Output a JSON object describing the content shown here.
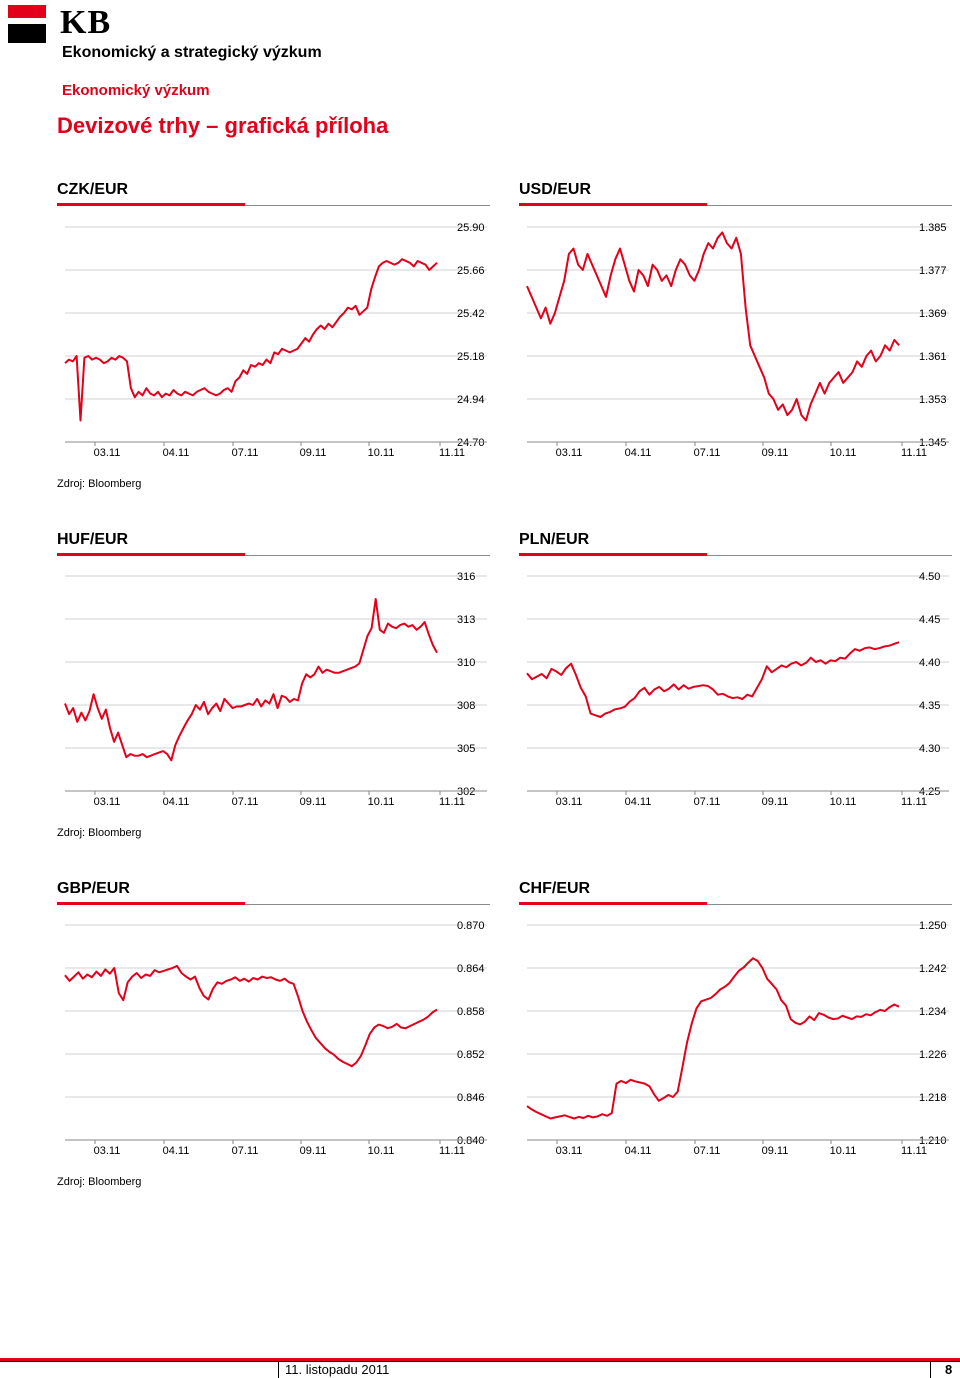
{
  "header": {
    "logo": "KB",
    "department": "Ekonomický a strategický výzkum",
    "subdepartment": "Ekonomický výzkum",
    "title": "Devizové trhy – grafická příloha"
  },
  "source_label": "Zdroj: Bloomberg",
  "footer": {
    "date": "11. listopadu 2011",
    "page": "8"
  },
  "colors": {
    "accent": "#e2001a",
    "line": "#e2001a",
    "grid": "#d0d0d0"
  },
  "chart_data": [
    {
      "id": "czk",
      "type": "line",
      "title": "CZK/EUR",
      "x_ticks": [
        "03.11",
        "04.11",
        "07.11",
        "09.11",
        "10.11",
        "11.11"
      ],
      "y_ticks": [
        "25.90",
        "25.66",
        "25.42",
        "25.18",
        "24.94",
        "24.70"
      ],
      "ylim": [
        24.7,
        25.9
      ],
      "series": [
        {
          "values": [
            25.14,
            25.16,
            25.15,
            25.18,
            24.82,
            25.17,
            25.18,
            25.16,
            25.17,
            25.16,
            25.14,
            25.15,
            25.17,
            25.16,
            25.18,
            25.17,
            25.15,
            25.0,
            24.95,
            24.98,
            24.96,
            25.0,
            24.97,
            24.96,
            24.98,
            24.95,
            24.97,
            24.96,
            24.99,
            24.97,
            24.96,
            24.98,
            24.97,
            24.96,
            24.98,
            24.99,
            25.0,
            24.98,
            24.97,
            24.96,
            24.97,
            24.99,
            25.0,
            24.98,
            25.04,
            25.06,
            25.1,
            25.08,
            25.13,
            25.12,
            25.14,
            25.13,
            25.16,
            25.14,
            25.2,
            25.19,
            25.22,
            25.21,
            25.2,
            25.21,
            25.22,
            25.25,
            25.28,
            25.26,
            25.3,
            25.33,
            25.35,
            25.33,
            25.36,
            25.34,
            25.37,
            25.4,
            25.42,
            25.45,
            25.44,
            25.46,
            25.41,
            25.43,
            25.45,
            25.55,
            25.62,
            25.68,
            25.7,
            25.71,
            25.7,
            25.69,
            25.7,
            25.72,
            25.71,
            25.7,
            25.68,
            25.71,
            25.7,
            25.69,
            25.66,
            25.68,
            25.7
          ]
        }
      ]
    },
    {
      "id": "usd",
      "type": "line",
      "title": "USD/EUR",
      "x_ticks": [
        "03.11",
        "04.11",
        "07.11",
        "09.11",
        "10.11",
        "11.11"
      ],
      "y_ticks": [
        "1.385",
        "1.377",
        "1.369",
        "1.361",
        "1.353",
        "1.345"
      ],
      "ylim": [
        1.345,
        1.385
      ],
      "series": [
        {
          "values": [
            1.374,
            1.372,
            1.37,
            1.368,
            1.37,
            1.367,
            1.369,
            1.372,
            1.375,
            1.38,
            1.381,
            1.378,
            1.377,
            1.38,
            1.378,
            1.376,
            1.374,
            1.372,
            1.376,
            1.379,
            1.381,
            1.378,
            1.375,
            1.373,
            1.377,
            1.376,
            1.374,
            1.378,
            1.377,
            1.375,
            1.376,
            1.374,
            1.377,
            1.379,
            1.378,
            1.376,
            1.375,
            1.377,
            1.38,
            1.382,
            1.381,
            1.383,
            1.384,
            1.382,
            1.381,
            1.383,
            1.38,
            1.37,
            1.363,
            1.361,
            1.359,
            1.357,
            1.354,
            1.353,
            1.351,
            1.352,
            1.35,
            1.351,
            1.353,
            1.35,
            1.349,
            1.352,
            1.354,
            1.356,
            1.354,
            1.356,
            1.357,
            1.358,
            1.356,
            1.357,
            1.358,
            1.36,
            1.359,
            1.361,
            1.362,
            1.36,
            1.361,
            1.363,
            1.362,
            1.364,
            1.363
          ]
        }
      ]
    },
    {
      "id": "huf",
      "type": "line",
      "title": "HUF/EUR",
      "x_ticks": [
        "03.11",
        "04.11",
        "07.11",
        "09.11",
        "10.11",
        "11.11"
      ],
      "y_ticks": [
        "316",
        "313",
        "310",
        "308",
        "305",
        "302"
      ],
      "ylim": [
        302,
        316
      ],
      "series": [
        {
          "values": [
            307.7,
            307.0,
            307.4,
            306.5,
            307.1,
            306.6,
            307.2,
            308.3,
            307.4,
            306.7,
            307.3,
            306.1,
            305.2,
            305.8,
            305.0,
            304.2,
            304.4,
            304.3,
            304.3,
            304.4,
            304.2,
            304.3,
            304.4,
            304.5,
            304.6,
            304.4,
            304.0,
            305.0,
            305.6,
            306.1,
            306.6,
            307.0,
            307.6,
            307.3,
            307.8,
            307.0,
            307.4,
            307.7,
            307.2,
            308.0,
            307.7,
            307.4,
            307.5,
            307.5,
            307.6,
            307.7,
            307.6,
            308.0,
            307.5,
            307.9,
            307.7,
            308.3,
            307.4,
            308.2,
            308.1,
            307.8,
            308.0,
            307.9,
            309.0,
            309.6,
            309.4,
            309.6,
            310.1,
            309.7,
            309.9,
            309.8,
            309.7,
            309.7,
            309.8,
            309.9,
            310.0,
            310.1,
            310.3,
            311.2,
            312.1,
            312.6,
            314.5,
            312.5,
            312.3,
            312.9,
            312.7,
            312.6,
            312.8,
            312.9,
            312.7,
            312.8,
            312.5,
            312.7,
            313.0,
            312.2,
            311.5,
            311.0
          ]
        }
      ]
    },
    {
      "id": "pln",
      "type": "line",
      "title": "PLN/EUR",
      "x_ticks": [
        "03.11",
        "04.11",
        "07.11",
        "09.11",
        "10.11",
        "11.11"
      ],
      "y_ticks": [
        "4.50",
        "4.45",
        "4.40",
        "4.35",
        "4.30",
        "4.25"
      ],
      "ylim": [
        4.25,
        4.5
      ],
      "series": [
        {
          "values": [
            4.387,
            4.38,
            4.383,
            4.386,
            4.381,
            4.392,
            4.389,
            4.385,
            4.393,
            4.398,
            4.385,
            4.37,
            4.36,
            4.34,
            4.338,
            4.336,
            4.34,
            4.342,
            4.345,
            4.346,
            4.348,
            4.354,
            4.358,
            4.366,
            4.37,
            4.362,
            4.368,
            4.371,
            4.366,
            4.369,
            4.374,
            4.368,
            4.373,
            4.369,
            4.371,
            4.372,
            4.373,
            4.372,
            4.368,
            4.362,
            4.363,
            4.36,
            4.358,
            4.359,
            4.357,
            4.362,
            4.36,
            4.37,
            4.38,
            4.395,
            4.388,
            4.392,
            4.396,
            4.394,
            4.398,
            4.4,
            4.396,
            4.399,
            4.405,
            4.4,
            4.402,
            4.398,
            4.402,
            4.401,
            4.405,
            4.404,
            4.41,
            4.415,
            4.413,
            4.416,
            4.417,
            4.415,
            4.416,
            4.418,
            4.419,
            4.421,
            4.423
          ]
        }
      ]
    },
    {
      "id": "gbp",
      "type": "line",
      "title": "GBP/EUR",
      "x_ticks": [
        "03.11",
        "04.11",
        "07.11",
        "09.11",
        "10.11",
        "11.11"
      ],
      "y_ticks": [
        "0.870",
        "0.864",
        "0.858",
        "0.852",
        "0.846",
        "0.840"
      ],
      "ylim": [
        0.84,
        0.87
      ],
      "series": [
        {
          "values": [
            0.863,
            0.8622,
            0.8628,
            0.8634,
            0.8625,
            0.8631,
            0.8627,
            0.8635,
            0.8629,
            0.8638,
            0.8632,
            0.864,
            0.8605,
            0.8595,
            0.862,
            0.8628,
            0.8633,
            0.8626,
            0.8631,
            0.8629,
            0.8637,
            0.8634,
            0.8636,
            0.8638,
            0.864,
            0.8643,
            0.8633,
            0.8628,
            0.8624,
            0.8628,
            0.8612,
            0.8601,
            0.8596,
            0.8611,
            0.862,
            0.8618,
            0.8622,
            0.8624,
            0.8627,
            0.8622,
            0.8625,
            0.8621,
            0.8626,
            0.8624,
            0.8628,
            0.8626,
            0.8627,
            0.8624,
            0.8622,
            0.8625,
            0.862,
            0.8618,
            0.86,
            0.858,
            0.8565,
            0.8553,
            0.8542,
            0.8535,
            0.8528,
            0.8523,
            0.8519,
            0.8513,
            0.8509,
            0.8506,
            0.8503,
            0.8508,
            0.8517,
            0.8532,
            0.8548,
            0.8557,
            0.8561,
            0.8559,
            0.8556,
            0.8558,
            0.8562,
            0.8557,
            0.8556,
            0.8559,
            0.8562,
            0.8565,
            0.8568,
            0.8572,
            0.8578,
            0.8582
          ]
        }
      ]
    },
    {
      "id": "chf",
      "type": "line",
      "title": "CHF/EUR",
      "x_ticks": [
        "03.11",
        "04.11",
        "07.11",
        "09.11",
        "10.11",
        "11.11"
      ],
      "y_ticks": [
        "1.250",
        "1.242",
        "1.234",
        "1.226",
        "1.218",
        "1.210"
      ],
      "ylim": [
        1.21,
        1.25
      ],
      "series": [
        {
          "values": [
            1.2163,
            1.2157,
            1.2152,
            1.2148,
            1.2144,
            1.214,
            1.2142,
            1.2144,
            1.2146,
            1.2143,
            1.214,
            1.2143,
            1.2141,
            1.2145,
            1.2142,
            1.2144,
            1.2148,
            1.2145,
            1.215,
            1.2205,
            1.221,
            1.2206,
            1.2212,
            1.2209,
            1.2207,
            1.2205,
            1.22,
            1.2185,
            1.2173,
            1.2178,
            1.2184,
            1.218,
            1.219,
            1.2235,
            1.2282,
            1.2317,
            1.2345,
            1.2358,
            1.2361,
            1.2364,
            1.2371,
            1.238,
            1.2385,
            1.2392,
            1.2404,
            1.2415,
            1.2421,
            1.243,
            1.2438,
            1.2433,
            1.242,
            1.24,
            1.239,
            1.238,
            1.236,
            1.235,
            1.2325,
            1.2318,
            1.2315,
            1.232,
            1.233,
            1.2323,
            1.2336,
            1.2333,
            1.2328,
            1.2325,
            1.2326,
            1.2331,
            1.2328,
            1.2325,
            1.233,
            1.2329,
            1.2334,
            1.2332,
            1.2338,
            1.2342,
            1.234,
            1.2347,
            1.2352,
            1.2348
          ]
        }
      ]
    }
  ]
}
